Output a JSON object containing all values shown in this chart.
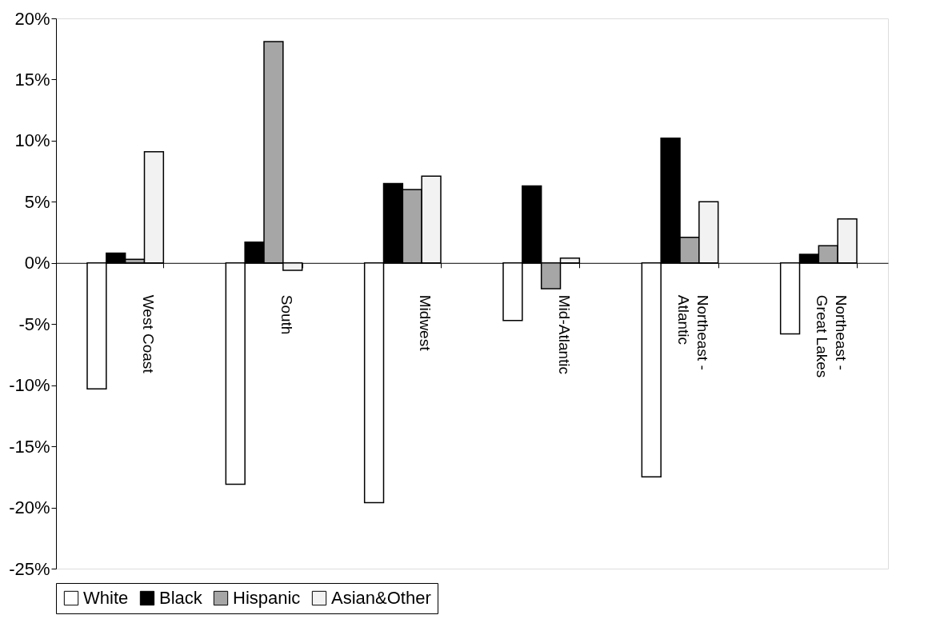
{
  "chart_data": {
    "type": "bar",
    "categories": [
      "West Coast",
      "South",
      "Midwest",
      "Mid-Atlantic",
      "Northeast - Atlantic",
      "Northeast - Great Lakes"
    ],
    "series": [
      {
        "name": "White",
        "color": "#ffffff",
        "values": [
          -10.3,
          -18.1,
          -19.6,
          -4.7,
          -17.5,
          -5.8
        ]
      },
      {
        "name": "Black",
        "color": "#000000",
        "values": [
          0.8,
          1.7,
          6.5,
          6.3,
          10.2,
          0.7
        ]
      },
      {
        "name": "Hispanic",
        "color": "#a6a6a6",
        "values": [
          0.3,
          18.1,
          6.0,
          -2.1,
          2.1,
          1.4
        ]
      },
      {
        "name": "Asian&Other",
        "color": "#f2f2f2",
        "values": [
          9.1,
          -0.6,
          7.1,
          0.4,
          5.0,
          3.6
        ]
      }
    ],
    "ylim": [
      -25,
      20
    ],
    "yticks": [
      {
        "value": -25,
        "label": "-25%"
      },
      {
        "value": -20,
        "label": "-20%"
      },
      {
        "value": -15,
        "label": "-15%"
      },
      {
        "value": -10,
        "label": "-10%"
      },
      {
        "value": -5,
        "label": "-5%"
      },
      {
        "value": 0,
        "label": "0%"
      },
      {
        "value": 5,
        "label": "5%"
      },
      {
        "value": 10,
        "label": "10%"
      },
      {
        "value": 15,
        "label": "15%"
      },
      {
        "value": 20,
        "label": "20%"
      }
    ],
    "grid": false,
    "legend": "bottom"
  }
}
